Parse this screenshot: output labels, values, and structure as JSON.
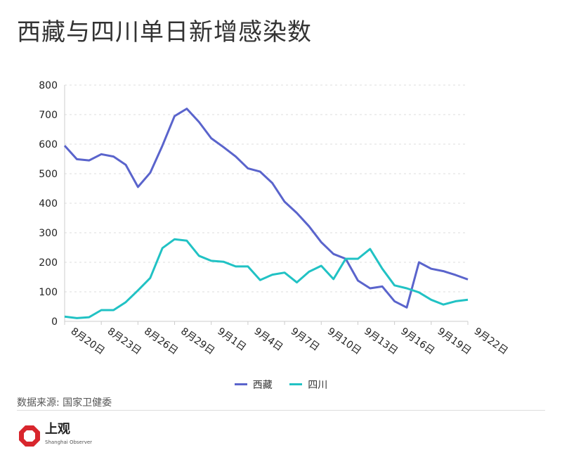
{
  "title": "西藏与四川单日新增感染数",
  "source": "数据来源: 国家卫健委",
  "logo": {
    "name": "上观",
    "subtitle": "Shanghai Observer"
  },
  "colors": {
    "tibet": "#5a64cc",
    "sichuan": "#21c2c4"
  },
  "chart_data": {
    "type": "line",
    "title": "西藏与四川单日新增感染数",
    "ylim": [
      0,
      800
    ],
    "yticks": [
      0,
      100,
      200,
      300,
      400,
      500,
      600,
      700,
      800
    ],
    "grid": true,
    "legend": "bottom",
    "x": [
      "8月20日",
      "8月21日",
      "8月22日",
      "8月23日",
      "8月24日",
      "8月25日",
      "8月26日",
      "8月27日",
      "8月28日",
      "8月29日",
      "8月30日",
      "8月31日",
      "9月1日",
      "9月2日",
      "9月3日",
      "9月4日",
      "9月5日",
      "9月6日",
      "9月7日",
      "9月8日",
      "9月9日",
      "9月10日",
      "9月11日",
      "9月12日",
      "9月13日",
      "9月14日",
      "9月15日",
      "9月16日",
      "9月17日",
      "9月18日",
      "9月19日",
      "9月20日",
      "9月21日",
      "9月22日"
    ],
    "xticks": [
      "8月20日",
      "8月23日",
      "8月26日",
      "8月29日",
      "9月1日",
      "9月4日",
      "9月7日",
      "9月10日",
      "9月13日",
      "9月16日",
      "9月19日",
      "9月22日"
    ],
    "series": [
      {
        "name": "西藏",
        "values": [
          595,
          549,
          545,
          566,
          558,
          530,
          455,
          503,
          595,
          695,
          720,
          675,
          620,
          590,
          558,
          518,
          507,
          468,
          405,
          367,
          322,
          268,
          228,
          212,
          138,
          112,
          118,
          68,
          47,
          200,
          178,
          170,
          157,
          142
        ]
      },
      {
        "name": "四川",
        "values": [
          16,
          11,
          14,
          38,
          38,
          65,
          105,
          147,
          248,
          278,
          273,
          222,
          205,
          202,
          186,
          186,
          140,
          158,
          165,
          132,
          168,
          188,
          143,
          212,
          212,
          245,
          178,
          122,
          112,
          98,
          73,
          57,
          68,
          73
        ]
      }
    ]
  }
}
